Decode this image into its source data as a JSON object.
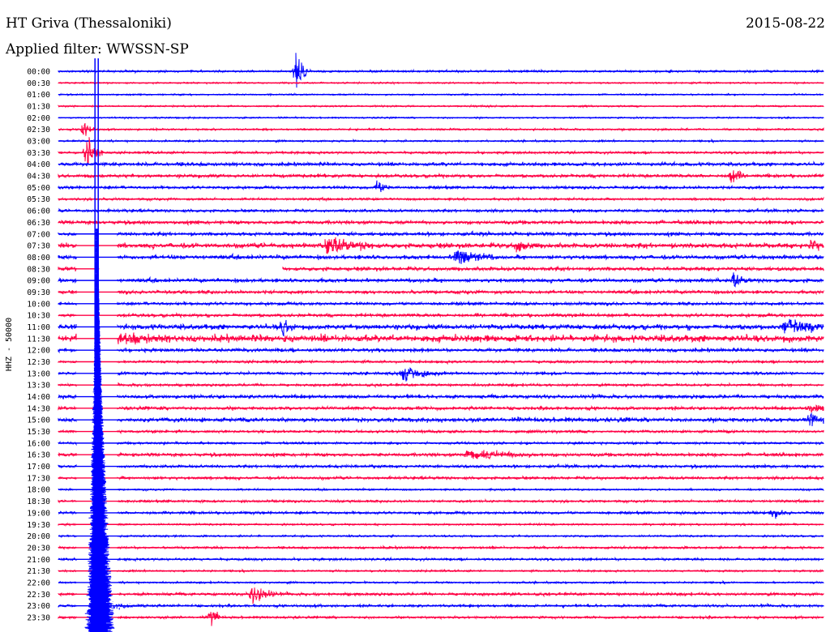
{
  "header": {
    "station": "HT Griva (Thessaloniki)",
    "date": "2015-08-22",
    "filter_label": "Applied filter:",
    "filter_value": "WWSSN-SP"
  },
  "chart_data": {
    "type": "line",
    "title": "HT Griva (Thessaloniki)",
    "date": "2015-08-22",
    "filter": "WWSSN-SP",
    "ylabel": "HHZ - 50000",
    "xlabel": "",
    "trace_colors": [
      "#0000ff",
      "#ff0044"
    ],
    "y_tick_labels": [
      "00:00",
      "00:30",
      "01:00",
      "01:30",
      "02:00",
      "02:30",
      "03:00",
      "03:30",
      "04:00",
      "04:30",
      "05:00",
      "05:30",
      "06:00",
      "06:30",
      "07:00",
      "07:30",
      "08:00",
      "08:30",
      "09:00",
      "09:30",
      "10:00",
      "10:30",
      "11:00",
      "11:30",
      "12:00",
      "12:30",
      "13:00",
      "13:30",
      "14:00",
      "14:30",
      "15:00",
      "15:30",
      "16:00",
      "16:30",
      "17:00",
      "17:30",
      "18:00",
      "18:30",
      "19:00",
      "19:30",
      "20:00",
      "20:30",
      "21:00",
      "21:30",
      "22:00",
      "22:30",
      "23:00",
      "23:30"
    ],
    "x_range_minutes": [
      0,
      30
    ],
    "background_noise": [
      0.7,
      0.5,
      0.5,
      0.5,
      0.5,
      0.6,
      0.6,
      0.8,
      1.3,
      1.2,
      1.0,
      0.8,
      1.0,
      1.3,
      1.3,
      1.8,
      1.5,
      1.4,
      1.4,
      1.2,
      1.1,
      1.2,
      1.9,
      2.6,
      1.3,
      0.9,
      1.0,
      0.9,
      1.3,
      1.2,
      1.6,
      0.9,
      0.8,
      1.2,
      1.0,
      1.0,
      0.6,
      0.8,
      0.9,
      0.6,
      0.6,
      0.8,
      0.8,
      0.6,
      0.6,
      1.0,
      0.9,
      0.8
    ],
    "events": [
      {
        "row": 0,
        "minute": 9.3,
        "amplitude": 20,
        "duration_minutes": 0.5
      },
      {
        "row": 5,
        "minute": 1.0,
        "amplitude": 10,
        "duration_minutes": 0.4
      },
      {
        "row": 7,
        "minute": 1.1,
        "amplitude": 12,
        "duration_minutes": 0.7
      },
      {
        "row": 10,
        "minute": 12.5,
        "amplitude": 5,
        "duration_minutes": 0.6
      },
      {
        "row": 9,
        "minute": 26.4,
        "amplitude": 8,
        "duration_minutes": 0.5
      },
      {
        "row": 15,
        "minute": 10.5,
        "amplitude": 7,
        "duration_minutes": 2.0
      },
      {
        "row": 15,
        "minute": 18.0,
        "amplitude": 6,
        "duration_minutes": 0.7
      },
      {
        "row": 15,
        "minute": 29.5,
        "amplitude": 5,
        "duration_minutes": 0.8
      },
      {
        "row": 16,
        "minute": 15.6,
        "amplitude": 8,
        "duration_minutes": 1.5
      },
      {
        "row": 18,
        "minute": 26.5,
        "amplitude": 6,
        "duration_minutes": 0.5
      },
      {
        "row": 22,
        "minute": 8.8,
        "amplitude": 9,
        "duration_minutes": 0.5
      },
      {
        "row": 22,
        "minute": 28.5,
        "amplitude": 6,
        "duration_minutes": 2.0
      },
      {
        "row": 23,
        "minute": 1.5,
        "amplitude": 5,
        "duration_minutes": 3.0
      },
      {
        "row": 26,
        "minute": 13.5,
        "amplitude": 7,
        "duration_minutes": 1.5
      },
      {
        "row": 29,
        "minute": 29.5,
        "amplitude": 5,
        "duration_minutes": 0.7
      },
      {
        "row": 30,
        "minute": 29.5,
        "amplitude": 6,
        "duration_minutes": 0.8
      },
      {
        "row": 33,
        "minute": 16.0,
        "amplitude": 4,
        "duration_minutes": 3.0
      },
      {
        "row": 38,
        "minute": 28.0,
        "amplitude": 4,
        "duration_minutes": 0.7
      },
      {
        "row": 45,
        "minute": 7.6,
        "amplitude": 9,
        "duration_minutes": 1.0
      },
      {
        "row": 47,
        "minute": 6.0,
        "amplitude": 10,
        "duration_minutes": 0.4
      }
    ],
    "gaps": [
      {
        "row": 17,
        "from_minute": 1.6,
        "to_minute": 8.8
      }
    ],
    "large_event": {
      "start_row": 14,
      "minute": 1.5,
      "peak_amplitude": 160,
      "decay_rows": 34
    }
  }
}
